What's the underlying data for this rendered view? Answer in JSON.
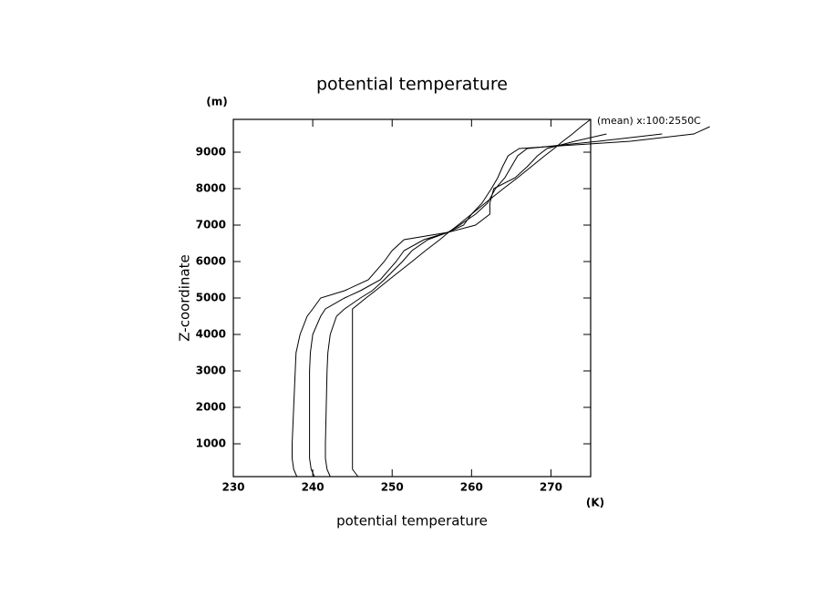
{
  "chart_data": {
    "type": "line",
    "title": "potential temperature",
    "xlabel": "potential temperature",
    "ylabel": "Z-coordinate",
    "xunit": "(K)",
    "yunit": "(m)",
    "annotation": "(mean) x:100:2550C",
    "y": [
      100,
      300,
      600,
      1000,
      2000,
      3000,
      3500,
      4000,
      4500,
      4700,
      5000,
      5200,
      5500,
      6000,
      6300,
      6600,
      6800,
      7000,
      7300,
      7600,
      8000,
      8300,
      8600,
      8900,
      9100,
      9300,
      9500,
      9700,
      9900
    ],
    "series": [
      {
        "color": "#000000",
        "values": [
          238.0,
          237.6,
          237.4,
          237.4,
          237.6,
          237.8,
          237.9,
          238.4,
          239.3,
          240,
          241.0,
          244,
          247,
          249,
          250,
          251.5,
          257,
          259,
          260,
          261.3,
          262.5,
          263.3,
          263.9,
          264.6,
          266,
          280,
          288,
          290,
          null
        ]
      },
      {
        "color": "#000000",
        "values": [
          240.2,
          239.8,
          239.6,
          239.6,
          239.6,
          239.6,
          239.7,
          240,
          241,
          241.6,
          244,
          246,
          248.5,
          250.5,
          251.5,
          254,
          257,
          258.5,
          260.5,
          262,
          263,
          264.2,
          265,
          265.8,
          267,
          276,
          284,
          null,
          null
        ]
      },
      {
        "color": "#000000",
        "values": [
          242.2,
          241.8,
          241.6,
          241.6,
          241.7,
          241.8,
          241.9,
          242.2,
          243,
          244,
          246,
          247.5,
          249,
          251.3,
          252.5,
          254.5,
          257,
          260.5,
          262.3,
          262.3,
          262.8,
          265.5,
          267,
          268.3,
          269.5,
          273,
          277,
          null,
          null
        ]
      },
      {
        "color": "#000000",
        "values": [
          245.7,
          245,
          245,
          245,
          245,
          245,
          245,
          245,
          245,
          245,
          246.7,
          247.9,
          249.6,
          252.5,
          254.2,
          256,
          257.1,
          258.3,
          260,
          261.7,
          264,
          265.8,
          267.5,
          269.2,
          270.4,
          271.5,
          272.7,
          273.8,
          275
        ]
      }
    ],
    "xlim": [
      230,
      275
    ],
    "xticks": [
      230,
      240,
      250,
      260,
      270
    ],
    "ylim": [
      100,
      9900
    ],
    "yticks": [
      1000,
      2000,
      3000,
      4000,
      5000,
      6000,
      7000,
      8000,
      9000
    ]
  }
}
